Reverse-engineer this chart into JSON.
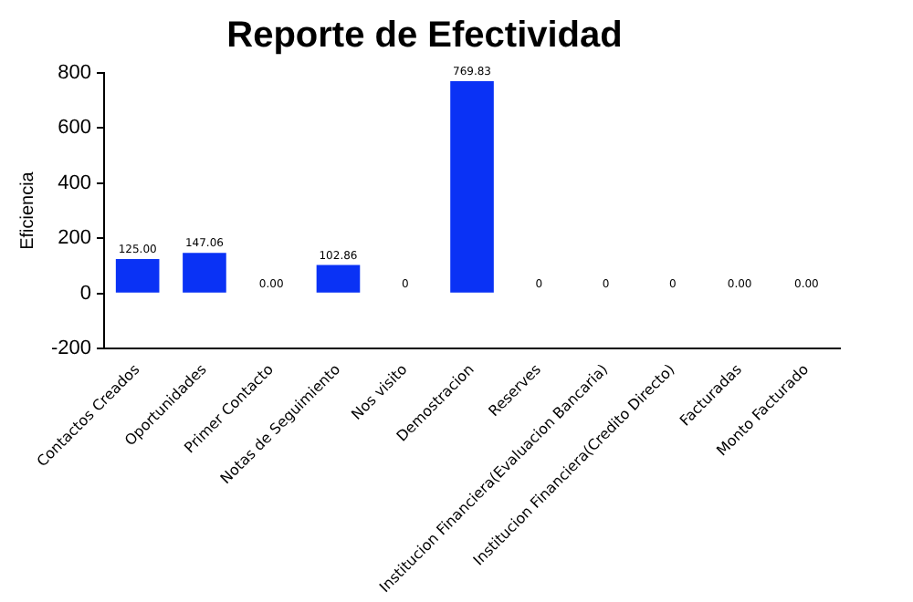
{
  "chart_data": {
    "type": "bar",
    "title": "Reporte de Efectividad",
    "ylabel": "Eficiencia",
    "categories": [
      "Contactos Creados",
      "Oportunidades",
      "Primer Contacto",
      "Notas de Seguimiento",
      "Nos visito",
      "Demostracion",
      "Reserves",
      "Institucion Financiera(Evaluacion Bancaria)",
      "Institucion Financiera(Credito Directo)",
      "Facturadas",
      "Monto Facturado"
    ],
    "values": [
      125,
      147.06,
      0,
      102.86,
      0,
      769.83,
      0,
      0,
      0,
      0,
      0
    ],
    "value_labels": [
      "125.00",
      "147.06",
      "0.00",
      "102.86",
      "0",
      "769.83",
      "0",
      "0",
      "0",
      "0.00",
      "0.00"
    ],
    "colors": [
      "#0a32f5",
      "#0a32f5",
      "#ff2020",
      "#0a32f5",
      "#ff2020",
      "#0a32f5",
      "#ff2020",
      "#ff2020",
      "#ff2020",
      "#ff2020",
      "#ff2020"
    ],
    "ylim": [
      -200,
      800
    ],
    "yticks": [
      -200,
      0,
      200,
      400,
      600,
      800
    ],
    "grid": false,
    "legend": false
  }
}
